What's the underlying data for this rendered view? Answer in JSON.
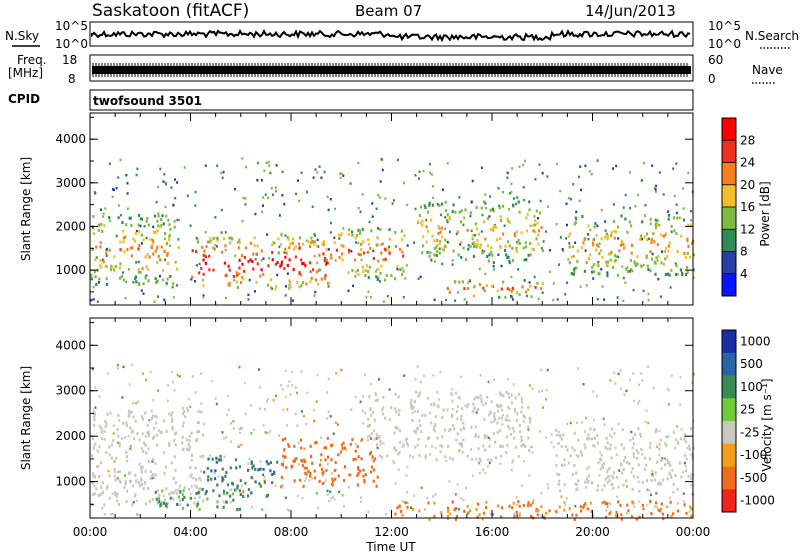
{
  "header": {
    "station": "Saskatoon (fitACF)",
    "beam": "Beam 07",
    "date": "14/Jun/2013"
  },
  "noise_panel": {
    "left_label": "N.Sky",
    "right_label": "N.Search",
    "left_ticks": [
      "10^5",
      "10^0"
    ],
    "right_ticks": [
      "10^5",
      "10^0"
    ]
  },
  "freq_panel": {
    "left_label_line1": "Freq.",
    "left_label_line2": "[MHz]",
    "left_ticks": [
      "18",
      "8"
    ],
    "right_label": "Nave",
    "right_ticks": [
      "60",
      "0"
    ]
  },
  "cpid_panel": {
    "label": "CPID",
    "program": "twofsound 3501"
  },
  "colors": {
    "axis": "#000000",
    "bg": "#ffffff"
  },
  "chart_data": [
    {
      "type": "heatmap",
      "name": "power",
      "ylabel": "Slant Range [km]",
      "ylim": [
        200,
        4600
      ],
      "yticks": [
        "1000",
        "2000",
        "3000",
        "4000"
      ],
      "colorbar_label": "Power [dB]",
      "colorbar_ticks": [
        "4",
        "8",
        "12",
        "16",
        "20",
        "24",
        "28"
      ],
      "colorbar_colors": [
        "#0a14ff",
        "#2a3ea8",
        "#2f8a57",
        "#7fbb43",
        "#f2bf2a",
        "#f57f1d",
        "#ef2f1e",
        "#ff0000"
      ],
      "bands": [
        {
          "t0": 0.0,
          "t1": 3.5,
          "r0": 700,
          "r1": 2300,
          "level": 20
        },
        {
          "t0": 4.0,
          "t1": 9.5,
          "r0": 600,
          "r1": 1800,
          "level": 28
        },
        {
          "t0": 9.5,
          "t1": 12.5,
          "r0": 800,
          "r1": 2000,
          "level": 22
        },
        {
          "t0": 13.0,
          "t1": 18.0,
          "r0": 1200,
          "r1": 2600,
          "level": 18
        },
        {
          "t0": 14.0,
          "t1": 18.0,
          "r0": 400,
          "r1": 800,
          "level": 22
        },
        {
          "t0": 19.0,
          "t1": 24.0,
          "r0": 900,
          "r1": 2300,
          "level": 19
        }
      ]
    },
    {
      "type": "heatmap",
      "name": "velocity",
      "ylabel": "Slant Range [km]",
      "ylim": [
        200,
        4600
      ],
      "yticks": [
        "1000",
        "2000",
        "3000",
        "4000"
      ],
      "xlabel": "Time UT",
      "xticks": [
        "00:00",
        "04:00",
        "08:00",
        "12:00",
        "16:00",
        "20:00",
        "00:00"
      ],
      "colorbar_label": "Velocity [m s⁻¹]",
      "colorbar_ticks": [
        "1000",
        "500",
        "100",
        "25",
        "-25",
        "-100",
        "-500",
        "-1000"
      ],
      "colorbar_colors": [
        "#1c2ba8",
        "#2b64a6",
        "#3b8a52",
        "#6fcb3a",
        "#c8c8c0",
        "#f2a01c",
        "#f06c1a",
        "#ee2418"
      ],
      "bands": [
        {
          "t0": 0.0,
          "t1": 4.5,
          "r0": 500,
          "r1": 2600,
          "vel": 0
        },
        {
          "t0": 4.5,
          "t1": 7.5,
          "r0": 700,
          "r1": 1600,
          "vel": 300
        },
        {
          "t0": 2.5,
          "t1": 6.0,
          "r0": 400,
          "r1": 900,
          "vel": 80
        },
        {
          "t0": 7.5,
          "t1": 11.5,
          "r0": 900,
          "r1": 2000,
          "vel": -300
        },
        {
          "t0": 11.0,
          "t1": 17.5,
          "r0": 1500,
          "r1": 3000,
          "vel": 0
        },
        {
          "t0": 18.5,
          "t1": 24.0,
          "r0": 800,
          "r1": 2200,
          "vel": 0
        },
        {
          "t0": 12.0,
          "t1": 24.0,
          "r0": 200,
          "r1": 600,
          "vel": -120
        }
      ]
    }
  ]
}
